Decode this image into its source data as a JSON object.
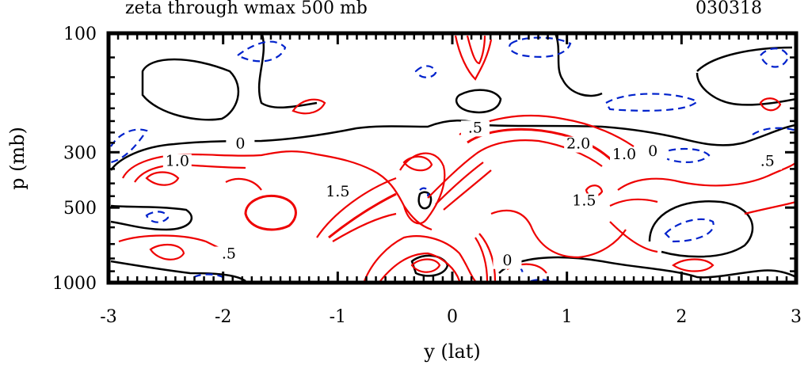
{
  "chart_data": {
    "type": "contour",
    "title": "zeta through wmax 500 mb",
    "date_label": "030318",
    "xlabel": "y (lat)",
    "ylabel": "p (mb)",
    "xlim": [
      -3,
      3
    ],
    "ylim": [
      1000,
      100
    ],
    "y_scale": "log",
    "x_ticks": [
      "-3",
      "-2",
      "-1",
      "0",
      "1",
      "2",
      "3"
    ],
    "x_tick_values": [
      -3,
      -2,
      -1,
      0,
      1,
      2,
      3
    ],
    "y_ticks": [
      "100",
      "300",
      "500",
      "1000"
    ],
    "y_tick_values": [
      100,
      300,
      500,
      1000
    ],
    "contour_levels": [
      -0.5,
      0,
      0.5,
      1.0,
      1.5,
      2.0
    ],
    "contour_labels": [
      {
        "text": "0",
        "x": -1.85,
        "p": 290,
        "color": "#000000"
      },
      {
        "text": "1.0",
        "x": -2.4,
        "p": 340,
        "color": "#000000"
      },
      {
        "text": ".5",
        "x": 0.2,
        "p": 250,
        "color": "#000000"
      },
      {
        "text": "2.0",
        "x": 1.1,
        "p": 290,
        "color": "#000000"
      },
      {
        "text": "1.0",
        "x": 1.5,
        "p": 320,
        "color": "#000000"
      },
      {
        "text": "0",
        "x": 1.75,
        "p": 310,
        "color": "#000000"
      },
      {
        "text": ".5",
        "x": 2.75,
        "p": 340,
        "color": "#000000"
      },
      {
        "text": "1.5",
        "x": -1.0,
        "p": 450,
        "color": "#000000"
      },
      {
        "text": "1.5",
        "x": 1.15,
        "p": 490,
        "color": "#000000"
      },
      {
        "text": ".5",
        "x": -1.95,
        "p": 800,
        "color": "#000000"
      },
      {
        "text": "0",
        "x": 0.48,
        "p": 850,
        "color": "#000000"
      }
    ],
    "colors": {
      "positive": "#ee0000",
      "zero": "#000000",
      "negative": "#0022cc"
    },
    "grid": false
  }
}
